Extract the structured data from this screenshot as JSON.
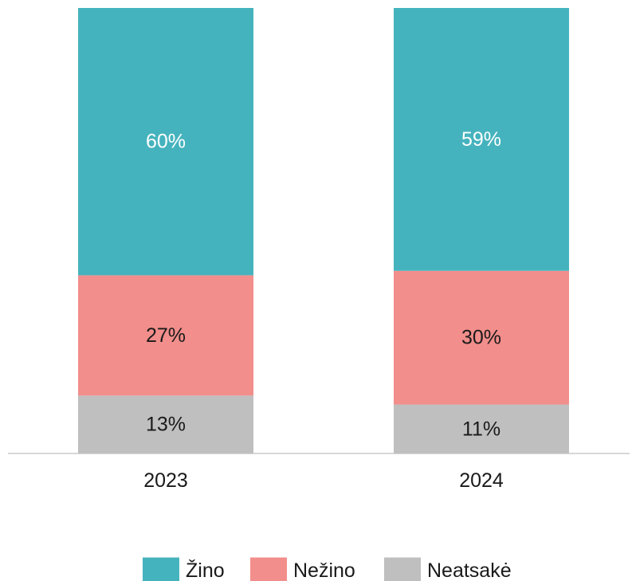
{
  "chart_data": {
    "type": "bar",
    "stacked": true,
    "categories": [
      "2023",
      "2024"
    ],
    "series": [
      {
        "name": "Žino",
        "values": [
          60,
          59
        ],
        "labels": [
          "60%",
          "59%"
        ],
        "color": "#45B3BE",
        "label_color": "#ffffff"
      },
      {
        "name": "Nežino",
        "values": [
          27,
          30
        ],
        "labels": [
          "27%",
          "30%"
        ],
        "color": "#F28E8B",
        "label_color": "#1a1a1a"
      },
      {
        "name": "Neatsakė",
        "values": [
          13,
          11
        ],
        "labels": [
          "13%",
          "11%"
        ],
        "color": "#BFBFBF",
        "label_color": "#1a1a1a"
      }
    ],
    "ylim": [
      0,
      100
    ],
    "grid": false,
    "legend_position": "bottom-center",
    "title": "",
    "xlabel": "",
    "ylabel": ""
  }
}
